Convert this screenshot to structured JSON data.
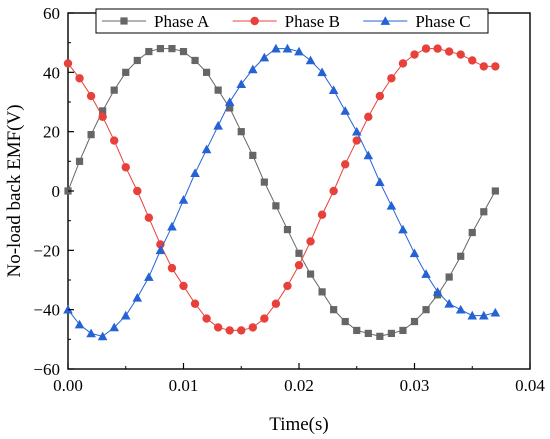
{
  "chart_data": {
    "type": "line",
    "xlabel": "Time(s)",
    "ylabel": "No-load back EMF(V)",
    "xlim": [
      0,
      0.04
    ],
    "ylim": [
      -60,
      60
    ],
    "x_ticks": [
      "0.00",
      "0.01",
      "0.02",
      "0.03",
      "0.04"
    ],
    "y_ticks": [
      "-60",
      "-40",
      "-20",
      "0",
      "20",
      "40",
      "60"
    ],
    "grid": false,
    "legend_position": "top",
    "series": [
      {
        "name": "Phase A",
        "color": "#666666",
        "marker": "square",
        "x": [
          0.0,
          0.001,
          0.002,
          0.003,
          0.004,
          0.005,
          0.006,
          0.007,
          0.008,
          0.009,
          0.01,
          0.011,
          0.012,
          0.013,
          0.014,
          0.015,
          0.016,
          0.017,
          0.018,
          0.019,
          0.02,
          0.021,
          0.022,
          0.023,
          0.024,
          0.025,
          0.026,
          0.027,
          0.028,
          0.029,
          0.03,
          0.031,
          0.032,
          0.033,
          0.034,
          0.035,
          0.036,
          0.037
        ],
        "y": [
          0,
          10,
          19,
          27,
          34,
          40,
          44,
          47,
          48,
          48,
          47,
          44,
          40,
          34,
          28,
          20,
          12,
          3,
          -5,
          -13,
          -21,
          -28,
          -34,
          -40,
          -44,
          -47,
          -48,
          -49,
          -48,
          -47,
          -44,
          -40,
          -35,
          -29,
          -22,
          -14,
          -7,
          0
        ]
      },
      {
        "name": "Phase B",
        "color": "#e8403a",
        "marker": "circle",
        "x": [
          0.0,
          0.001,
          0.002,
          0.003,
          0.004,
          0.005,
          0.006,
          0.007,
          0.008,
          0.009,
          0.01,
          0.011,
          0.012,
          0.013,
          0.014,
          0.015,
          0.016,
          0.017,
          0.018,
          0.019,
          0.02,
          0.021,
          0.022,
          0.023,
          0.024,
          0.025,
          0.026,
          0.027,
          0.028,
          0.029,
          0.03,
          0.031,
          0.032,
          0.033,
          0.034,
          0.035,
          0.036,
          0.037
        ],
        "y": [
          43,
          38,
          32,
          25,
          17,
          8,
          0,
          -9,
          -18,
          -26,
          -32,
          -38,
          -43,
          -46,
          -47,
          -47,
          -46,
          -43,
          -38,
          -32,
          -25,
          -17,
          -8,
          0,
          9,
          17,
          25,
          32,
          38,
          43,
          46,
          48,
          48,
          47,
          46,
          44,
          42,
          42
        ]
      },
      {
        "name": "Phase C",
        "color": "#2462d6",
        "marker": "triangle",
        "x": [
          0.0,
          0.001,
          0.002,
          0.003,
          0.004,
          0.005,
          0.006,
          0.007,
          0.008,
          0.009,
          0.01,
          0.011,
          0.012,
          0.013,
          0.014,
          0.015,
          0.016,
          0.017,
          0.018,
          0.019,
          0.02,
          0.021,
          0.022,
          0.023,
          0.024,
          0.025,
          0.026,
          0.027,
          0.028,
          0.029,
          0.03,
          0.031,
          0.032,
          0.033,
          0.034,
          0.035,
          0.036,
          0.037
        ],
        "y": [
          -40,
          -45,
          -48,
          -49,
          -46,
          -42,
          -36,
          -29,
          -20,
          -12,
          -3,
          6,
          14,
          22,
          30,
          36,
          41,
          45,
          48,
          48,
          47,
          44,
          40,
          34,
          27,
          20,
          12,
          3,
          -5,
          -13,
          -21,
          -28,
          -34,
          -38,
          -40,
          -42,
          -42,
          -41
        ]
      }
    ]
  }
}
